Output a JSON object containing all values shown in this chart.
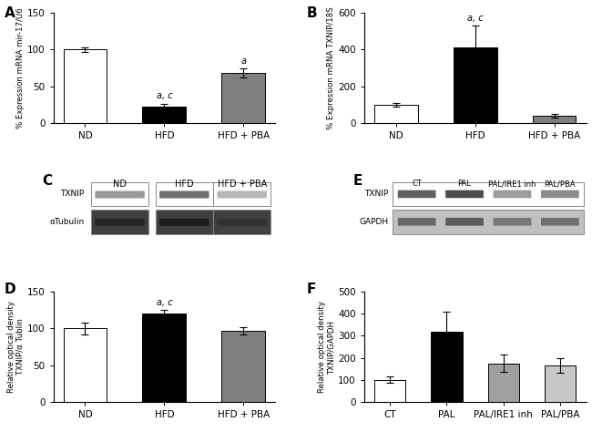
{
  "panel_A": {
    "categories": [
      "ND",
      "HFD",
      "HFD + PBA"
    ],
    "values": [
      100,
      22,
      68
    ],
    "errors": [
      3,
      4,
      6
    ],
    "colors": [
      "white",
      "black",
      "#808080"
    ],
    "ylabel": "% Expression mRNA mir-17/U6",
    "ylim": [
      0,
      150
    ],
    "yticks": [
      0,
      50,
      100,
      150
    ],
    "label": "A",
    "annotations": [
      {
        "bar": 1,
        "text": "a, c"
      },
      {
        "bar": 2,
        "text": "a"
      }
    ]
  },
  "panel_B": {
    "categories": [
      "ND",
      "HFD",
      "HFD + PBA"
    ],
    "values": [
      100,
      410,
      40
    ],
    "errors": [
      10,
      120,
      8
    ],
    "colors": [
      "white",
      "black",
      "#808080"
    ],
    "ylabel": "% Expression mRNA TXNIP/18S",
    "ylim": [
      0,
      600
    ],
    "yticks": [
      0,
      200,
      400,
      600
    ],
    "label": "B",
    "annotations": [
      {
        "bar": 1,
        "text": "a, c"
      }
    ]
  },
  "panel_D": {
    "categories": [
      "ND",
      "HFD",
      "HFD + PBA"
    ],
    "values": [
      100,
      120,
      97
    ],
    "errors": [
      8,
      5,
      5
    ],
    "colors": [
      "white",
      "black",
      "#808080"
    ],
    "ylabel": "Relative optical density\nTXNIP/α Tublin",
    "ylim": [
      0,
      150
    ],
    "yticks": [
      0,
      50,
      100,
      150
    ],
    "label": "D",
    "annotations": [
      {
        "bar": 1,
        "text": "a, c"
      }
    ]
  },
  "panel_F": {
    "categories": [
      "CT",
      "PAL",
      "PAL/IRE1 inh",
      "PAL/PBA"
    ],
    "values": [
      100,
      320,
      175,
      165
    ],
    "errors": [
      15,
      90,
      40,
      35
    ],
    "colors": [
      "white",
      "black",
      "#a0a0a0",
      "#c8c8c8"
    ],
    "ylabel": "Relative optical density\nTXNIP/GAPDH",
    "ylim": [
      0,
      500
    ],
    "yticks": [
      0,
      100,
      200,
      300,
      400,
      500
    ],
    "label": "F",
    "annotations": []
  },
  "panel_C": {
    "label": "C",
    "col_labels": [
      "ND",
      "HFD",
      "HFD + PBA"
    ],
    "row_labels": [
      "TXNIP",
      "αTubulin"
    ],
    "box_bg_row0": "white",
    "box_bg_row1": "#404040",
    "band_colors_row0": [
      "#909090",
      "#606060",
      "#b0b0b0"
    ],
    "band_colors_row1": [
      "#202020",
      "#181818",
      "#303030"
    ]
  },
  "panel_E": {
    "label": "E",
    "col_labels": [
      "CT",
      "PAL",
      "PAL/IRE1 inh",
      "PAL/PBA"
    ],
    "row_labels": [
      "TXNIP",
      "GAPDH"
    ],
    "row_bg": [
      "white",
      "#c0c0c0"
    ],
    "band_colors_row0": [
      "#505050",
      "#383838",
      "#909090",
      "#808080"
    ],
    "band_colors_row1": [
      "#606060",
      "#505050",
      "#707070",
      "#686868"
    ]
  }
}
